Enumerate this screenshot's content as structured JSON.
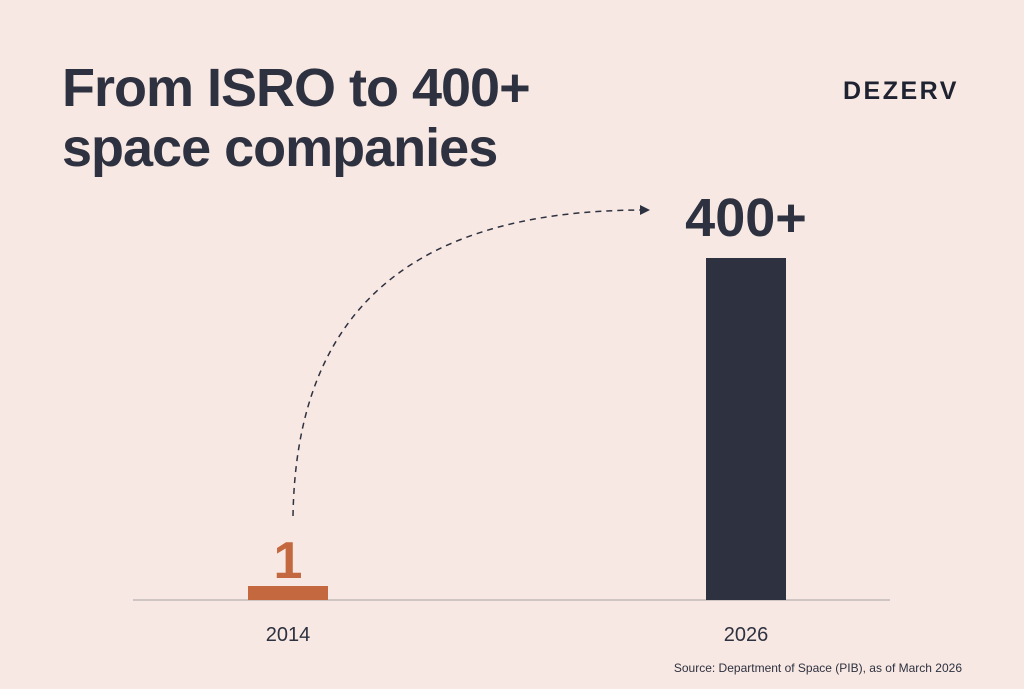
{
  "title_lines": [
    "From ISRO to 400+",
    "space companies"
  ],
  "brand": "DEZERV",
  "source": "Source: Department of Space (PIB), as of March 2026",
  "colors": {
    "background": "#f7e8e3",
    "text": "#2e313f",
    "bar_2014": "#c4683f",
    "bar_2026": "#2e313f",
    "baseline": "#cfc6c3"
  },
  "chart_data": {
    "type": "bar",
    "categories": [
      "2014",
      "2026"
    ],
    "values": [
      1,
      400
    ],
    "data_labels": [
      "1",
      "400+"
    ],
    "bar_colors": [
      "#c4683f",
      "#2e313f"
    ],
    "annotation": "dashed arrow from 2014 bar to 2026 bar",
    "title": "From ISRO to 400+ space companies",
    "xlabel": "",
    "ylabel": "",
    "ylim": [
      0,
      400
    ],
    "grid": false,
    "legend": "none"
  }
}
